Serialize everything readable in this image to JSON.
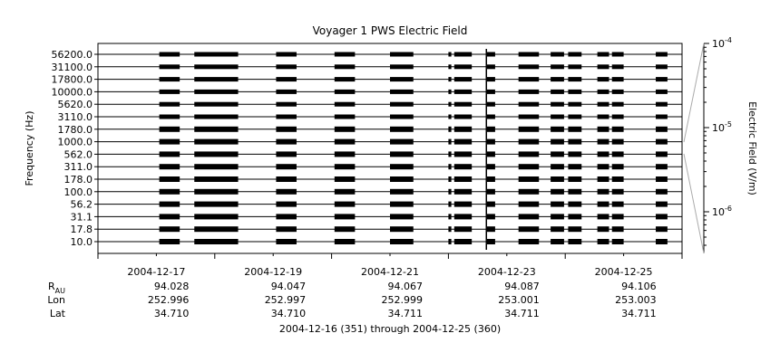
{
  "chart_data": {
    "type": "heatmap",
    "title": "Voyager 1 PWS Electric Field",
    "ylabel": "Frequency (Hz)",
    "y_scale": "log",
    "y_channels": [
      "10.0",
      "17.8",
      "31.1",
      "56.2",
      "100.0",
      "178.0",
      "311.0",
      "562.0",
      "1000.0",
      "1780.0",
      "3110.0",
      "5620.0",
      "10000.0",
      "17800.0",
      "31100.0",
      "56200.0"
    ],
    "x_range": [
      "2004-12-16",
      "2004-12-26"
    ],
    "x_ticks": [
      "2004-12-17",
      "2004-12-19",
      "2004-12-21",
      "2004-12-23",
      "2004-12-25"
    ],
    "range_label": "2004-12-16 (351) through 2004-12-25 (360)",
    "colorbar": {
      "label": "Electric Field (V/m)",
      "scale": "log",
      "ticks": [
        {
          "base": "10",
          "exp": "-4"
        },
        {
          "base": "10",
          "exp": "-5"
        },
        {
          "base": "10",
          "exp": "-6"
        }
      ]
    },
    "ephemeris": [
      {
        "label": "R",
        "sub": "AU",
        "values": [
          "94.028",
          "94.047",
          "94.067",
          "94.087",
          "94.106"
        ]
      },
      {
        "label": "Lon",
        "sub": "",
        "values": [
          "252.996",
          "252.997",
          "252.999",
          "253.001",
          "253.003"
        ]
      },
      {
        "label": "Lat",
        "sub": "",
        "values": [
          "34.710",
          "34.710",
          "34.711",
          "34.711",
          "34.711"
        ]
      }
    ],
    "coverage_days": [
      [
        1.05,
        1.4
      ],
      [
        1.65,
        2.4
      ],
      [
        3.05,
        3.4
      ],
      [
        4.05,
        4.4
      ],
      [
        5.0,
        5.4
      ],
      [
        6.0,
        6.05
      ],
      [
        6.1,
        6.4
      ],
      [
        6.65,
        6.8
      ],
      [
        7.2,
        7.55
      ],
      [
        7.75,
        7.98
      ],
      [
        8.05,
        8.28
      ],
      [
        8.55,
        8.75
      ],
      [
        8.8,
        9.0
      ],
      [
        9.55,
        9.75
      ]
    ],
    "spike_day": 6.65,
    "colors": {
      "data": "#000000",
      "axis": "#000000",
      "colorbar_edge": "#aaaaaa"
    }
  }
}
